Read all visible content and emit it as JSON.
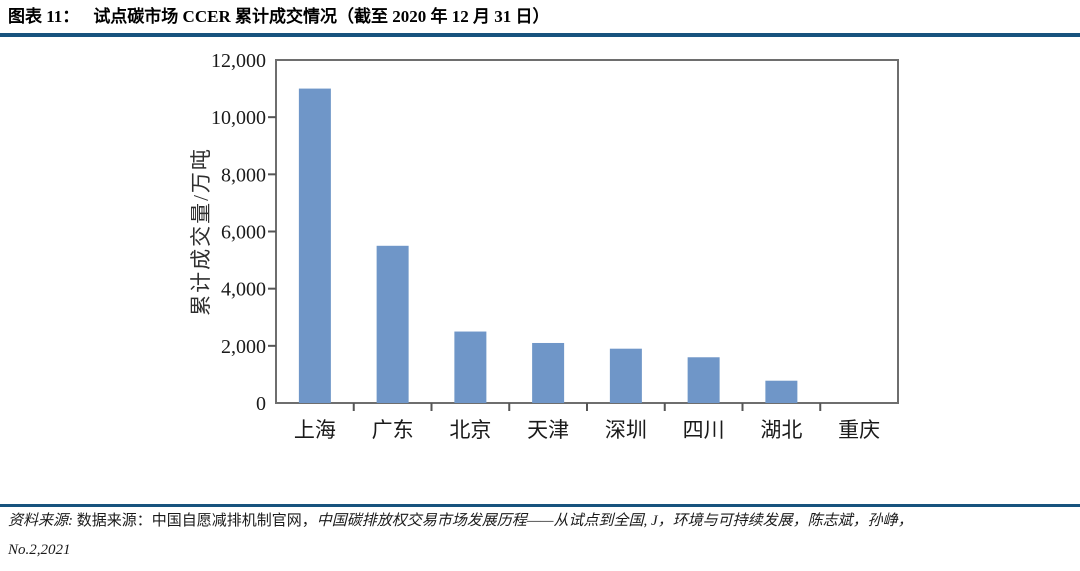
{
  "header": {
    "figure_label": "图表 11：",
    "figure_title": "试点碳市场 CCER 累计成交情况（截至 2020 年 12 月 31 日）"
  },
  "chart_data": {
    "type": "bar",
    "title": "",
    "categories": [
      "上海",
      "广东",
      "北京",
      "天津",
      "深圳",
      "四川",
      "湖北",
      "重庆"
    ],
    "values": [
      11000,
      5500,
      2500,
      2100,
      1900,
      1600,
      780,
      0
    ],
    "xlabel": "",
    "ylabel": "累计成交量/万吨",
    "ylim": [
      0,
      12000
    ],
    "yticks": [
      0,
      2000,
      4000,
      6000,
      8000,
      10000,
      12000
    ],
    "ytick_labels": [
      "0",
      "2,000",
      "4,000",
      "6,000",
      "8,000",
      "10,000",
      "12,000"
    ],
    "grid": false,
    "legend": "none",
    "bar_color": "#6f96c8"
  },
  "footer": {
    "source_label": "资料来源:",
    "source_text": " 数据来源：中国自愿减排机制官网，",
    "source_citation": "中国碳排放权交易市场发展历程——从试点到全国, J，环境与可持续发展，陈志斌，孙峥，",
    "source_line2": "No.2,2021"
  },
  "colors": {
    "accent_rule": "#17537e",
    "bar": "#6f96c8",
    "plot_frame": "#6e6e6e",
    "text": "#111111"
  }
}
